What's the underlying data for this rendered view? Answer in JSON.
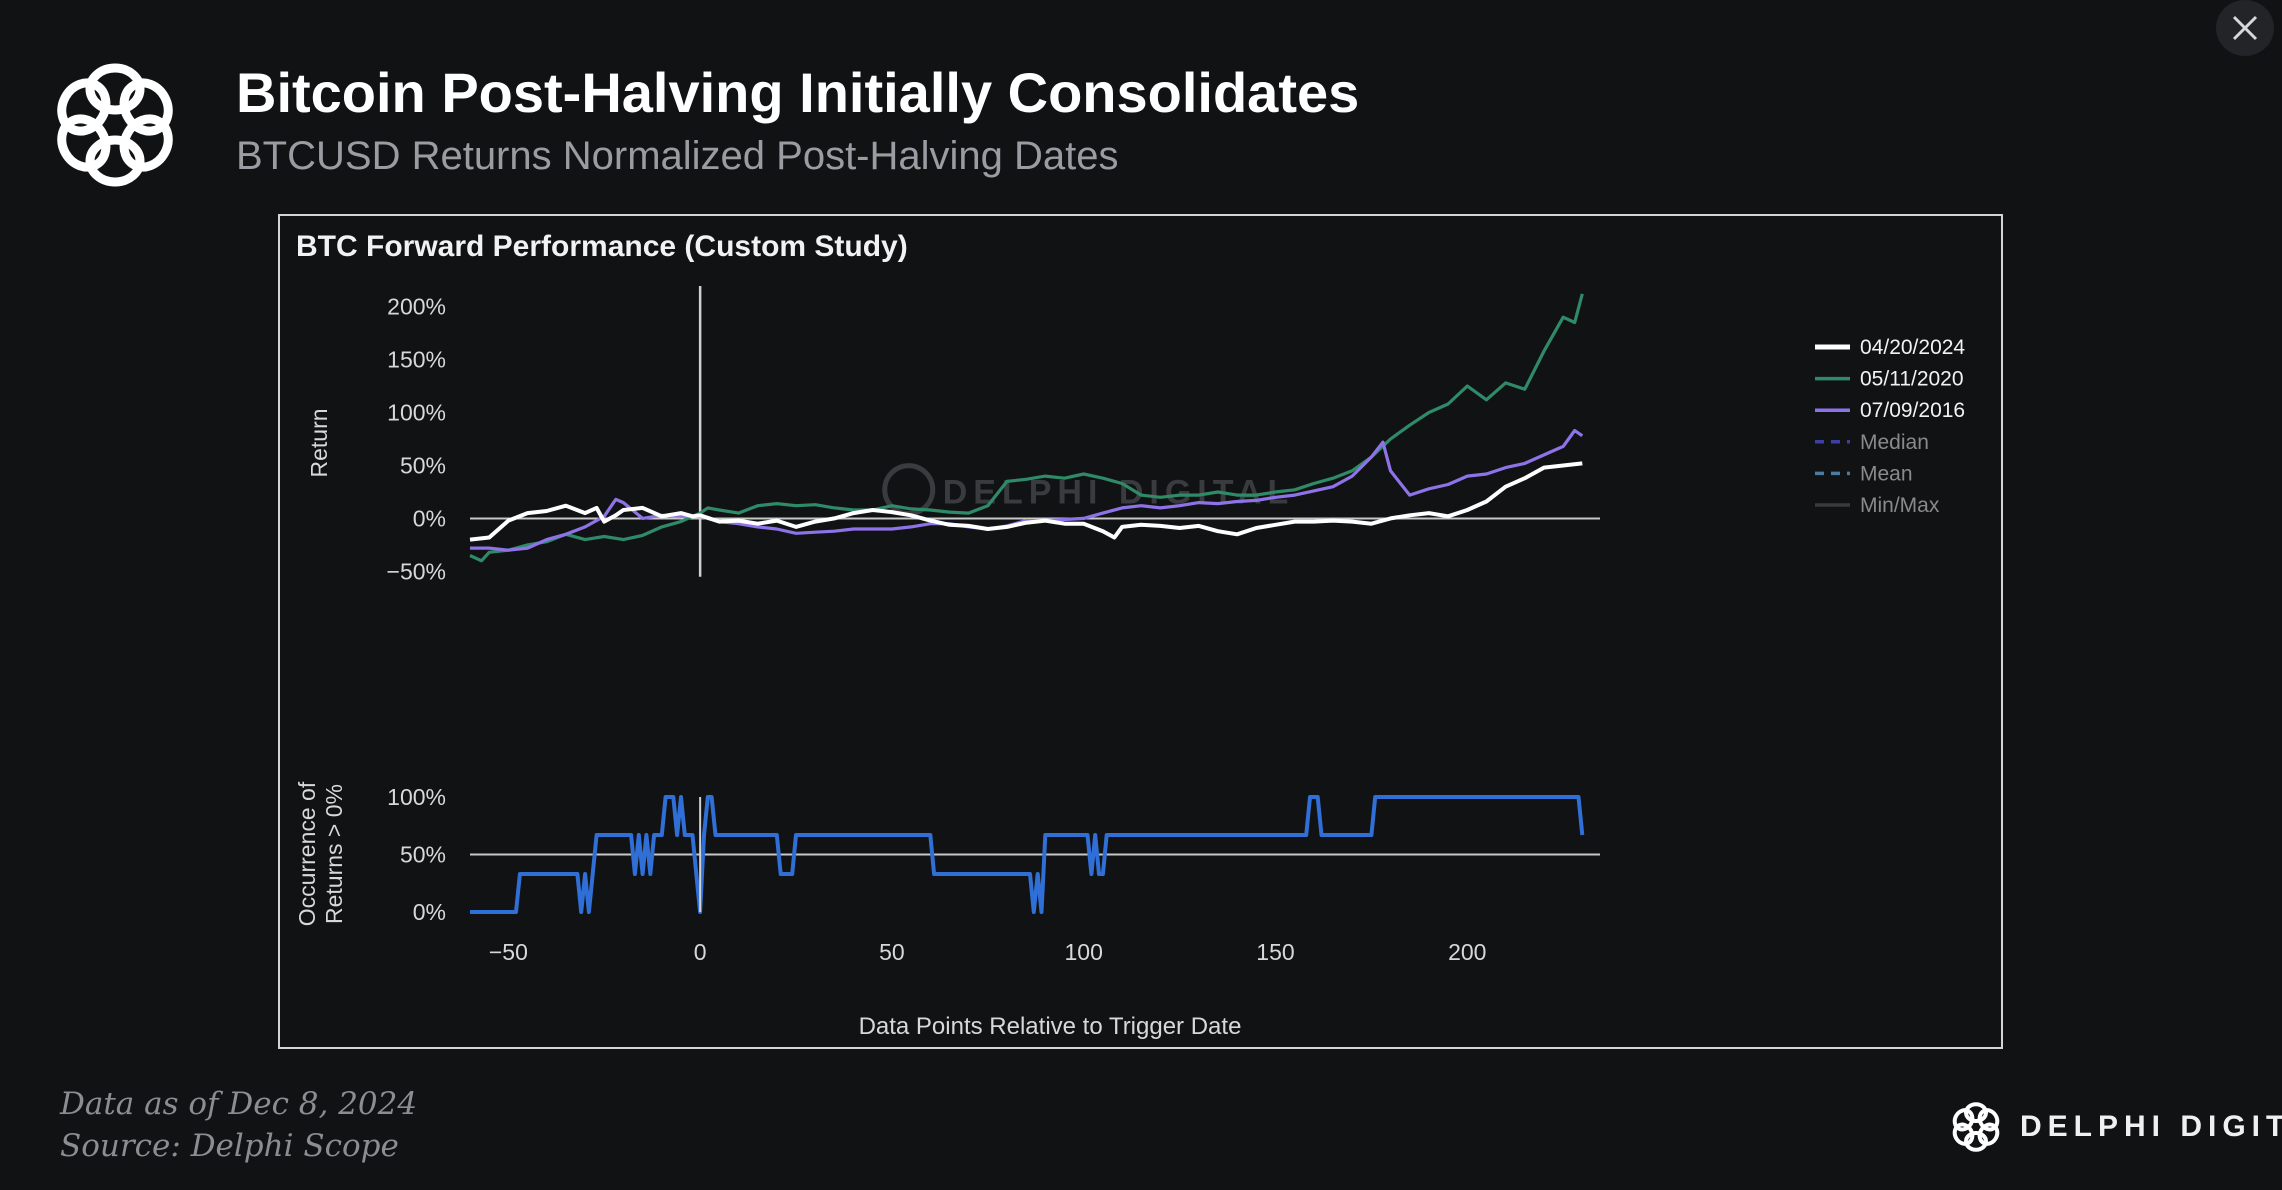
{
  "header": {
    "title": "Bitcoin Post-Halving Initially Consolidates",
    "subtitle": "BTCUSD Returns Normalized Post-Halving Dates",
    "logo_icon": "delphi-knot-logo-icon",
    "close_icon": "close-icon"
  },
  "footer": {
    "data_as_of": "Data as of Dec 8, 2024",
    "source": "Source: Delphi Scope",
    "brand_name": "DELPHI DIGITAL"
  },
  "watermark": "DELPHI DIGITAL",
  "chart_data": {
    "type": "line",
    "panel_title": "BTC Forward Performance (Custom Study)",
    "xlabel": "Data Points Relative to Trigger Date",
    "xlim": [
      -60,
      232
    ],
    "x_ticks": [
      -50,
      0,
      50,
      100,
      150,
      200
    ],
    "x_tick_labels": [
      "−50",
      "0",
      "50",
      "100",
      "150",
      "200"
    ],
    "trigger_x": 0,
    "colors": {
      "04/20/2024": "#ffffff",
      "05/11/2020": "#2f8a68",
      "07/09/2016": "#8e73e8",
      "Median": "#3d3fa6",
      "Mean": "#4b7ba1",
      "Min/Max": "#3a3a3a",
      "occurrence": "#2f6fd6",
      "zero_line": "#c8c8c8",
      "trigger_line": "#d0d0d0"
    },
    "legend": {
      "position": "right",
      "entries": [
        {
          "name": "04/20/2024",
          "style": "solid"
        },
        {
          "name": "05/11/2020",
          "style": "solid"
        },
        {
          "name": "07/09/2016",
          "style": "solid"
        },
        {
          "name": "Median",
          "style": "dashed"
        },
        {
          "name": "Mean",
          "style": "dashed"
        },
        {
          "name": "Min/Max",
          "style": "solid"
        }
      ]
    },
    "returns_panel": {
      "ylabel": "Return",
      "ylim": [
        -60,
        210
      ],
      "y_ticks": [
        -50,
        0,
        50,
        100,
        150,
        200
      ],
      "y_tick_labels": [
        "−50%",
        "0%",
        "50%",
        "100%",
        "150%",
        "200%"
      ],
      "reference_line": 0,
      "series": [
        {
          "name": "04/20/2024",
          "points": [
            [
              -60,
              -20
            ],
            [
              -55,
              -18
            ],
            [
              -50,
              -2
            ],
            [
              -45,
              5
            ],
            [
              -40,
              7
            ],
            [
              -35,
              12
            ],
            [
              -30,
              5
            ],
            [
              -27,
              10
            ],
            [
              -25,
              -3
            ],
            [
              -22,
              3
            ],
            [
              -20,
              8
            ],
            [
              -15,
              10
            ],
            [
              -10,
              2
            ],
            [
              -5,
              5
            ],
            [
              -2,
              2
            ],
            [
              0,
              3
            ],
            [
              5,
              -3
            ],
            [
              10,
              -2
            ],
            [
              15,
              -5
            ],
            [
              20,
              -2
            ],
            [
              25,
              -8
            ],
            [
              30,
              -3
            ],
            [
              35,
              0
            ],
            [
              40,
              5
            ],
            [
              45,
              8
            ],
            [
              50,
              6
            ],
            [
              55,
              3
            ],
            [
              60,
              -2
            ],
            [
              65,
              -6
            ],
            [
              70,
              -7
            ],
            [
              75,
              -10
            ],
            [
              80,
              -8
            ],
            [
              85,
              -4
            ],
            [
              90,
              -2
            ],
            [
              95,
              -5
            ],
            [
              100,
              -5
            ],
            [
              105,
              -12
            ],
            [
              108,
              -18
            ],
            [
              110,
              -8
            ],
            [
              115,
              -6
            ],
            [
              120,
              -7
            ],
            [
              125,
              -9
            ],
            [
              130,
              -7
            ],
            [
              135,
              -12
            ],
            [
              140,
              -15
            ],
            [
              145,
              -9
            ],
            [
              150,
              -6
            ],
            [
              155,
              -3
            ],
            [
              160,
              -3
            ],
            [
              165,
              -2
            ],
            [
              170,
              -3
            ],
            [
              175,
              -5
            ],
            [
              180,
              0
            ],
            [
              185,
              3
            ],
            [
              190,
              5
            ],
            [
              195,
              2
            ],
            [
              200,
              8
            ],
            [
              205,
              16
            ],
            [
              210,
              30
            ],
            [
              215,
              38
            ],
            [
              220,
              48
            ],
            [
              225,
              50
            ],
            [
              230,
              52
            ]
          ]
        },
        {
          "name": "05/11/2020",
          "points": [
            [
              -60,
              -35
            ],
            [
              -57,
              -40
            ],
            [
              -55,
              -32
            ],
            [
              -50,
              -30
            ],
            [
              -45,
              -25
            ],
            [
              -40,
              -22
            ],
            [
              -35,
              -15
            ],
            [
              -30,
              -20
            ],
            [
              -25,
              -17
            ],
            [
              -20,
              -20
            ],
            [
              -15,
              -16
            ],
            [
              -10,
              -8
            ],
            [
              -5,
              -3
            ],
            [
              -2,
              2
            ],
            [
              0,
              5
            ],
            [
              2,
              10
            ],
            [
              5,
              8
            ],
            [
              10,
              5
            ],
            [
              15,
              12
            ],
            [
              20,
              14
            ],
            [
              25,
              12
            ],
            [
              30,
              13
            ],
            [
              35,
              10
            ],
            [
              40,
              8
            ],
            [
              45,
              8
            ],
            [
              50,
              12
            ],
            [
              55,
              9
            ],
            [
              60,
              8
            ],
            [
              65,
              6
            ],
            [
              70,
              5
            ],
            [
              75,
              12
            ],
            [
              80,
              35
            ],
            [
              85,
              37
            ],
            [
              90,
              40
            ],
            [
              95,
              38
            ],
            [
              100,
              42
            ],
            [
              105,
              38
            ],
            [
              110,
              33
            ],
            [
              115,
              22
            ],
            [
              120,
              20
            ],
            [
              125,
              22
            ],
            [
              130,
              22
            ],
            [
              135,
              25
            ],
            [
              140,
              22
            ],
            [
              145,
              22
            ],
            [
              150,
              25
            ],
            [
              155,
              27
            ],
            [
              160,
              33
            ],
            [
              165,
              38
            ],
            [
              170,
              45
            ],
            [
              175,
              58
            ],
            [
              180,
              75
            ],
            [
              185,
              88
            ],
            [
              190,
              100
            ],
            [
              195,
              108
            ],
            [
              200,
              125
            ],
            [
              205,
              112
            ],
            [
              210,
              128
            ],
            [
              215,
              122
            ],
            [
              220,
              158
            ],
            [
              225,
              190
            ],
            [
              228,
              185
            ],
            [
              230,
              212
            ]
          ]
        },
        {
          "name": "07/09/2016",
          "points": [
            [
              -60,
              -28
            ],
            [
              -55,
              -28
            ],
            [
              -50,
              -30
            ],
            [
              -45,
              -28
            ],
            [
              -40,
              -20
            ],
            [
              -35,
              -15
            ],
            [
              -30,
              -8
            ],
            [
              -25,
              2
            ],
            [
              -22,
              18
            ],
            [
              -20,
              15
            ],
            [
              -15,
              0
            ],
            [
              -10,
              3
            ],
            [
              -5,
              2
            ],
            [
              0,
              2
            ],
            [
              5,
              -3
            ],
            [
              10,
              -5
            ],
            [
              15,
              -8
            ],
            [
              20,
              -10
            ],
            [
              25,
              -14
            ],
            [
              30,
              -13
            ],
            [
              35,
              -12
            ],
            [
              40,
              -10
            ],
            [
              45,
              -10
            ],
            [
              50,
              -10
            ],
            [
              55,
              -8
            ],
            [
              60,
              -5
            ],
            [
              65,
              -5
            ],
            [
              70,
              -8
            ],
            [
              75,
              -10
            ],
            [
              80,
              -7
            ],
            [
              85,
              -2
            ],
            [
              90,
              -2
            ],
            [
              95,
              -1
            ],
            [
              100,
              0
            ],
            [
              105,
              5
            ],
            [
              110,
              10
            ],
            [
              115,
              12
            ],
            [
              120,
              10
            ],
            [
              125,
              12
            ],
            [
              130,
              15
            ],
            [
              135,
              14
            ],
            [
              140,
              16
            ],
            [
              145,
              17
            ],
            [
              150,
              20
            ],
            [
              155,
              22
            ],
            [
              160,
              26
            ],
            [
              165,
              30
            ],
            [
              170,
              40
            ],
            [
              175,
              58
            ],
            [
              178,
              72
            ],
            [
              180,
              45
            ],
            [
              185,
              22
            ],
            [
              190,
              28
            ],
            [
              195,
              32
            ],
            [
              200,
              40
            ],
            [
              205,
              42
            ],
            [
              210,
              48
            ],
            [
              215,
              52
            ],
            [
              220,
              60
            ],
            [
              225,
              68
            ],
            [
              228,
              83
            ],
            [
              230,
              78
            ]
          ]
        }
      ]
    },
    "occurrence_panel": {
      "ylabel": "Occurrence of Returns > 0%",
      "ylim": [
        0,
        100
      ],
      "y_ticks": [
        0,
        50,
        100
      ],
      "y_tick_labels": [
        "0%",
        "50%",
        "100%"
      ],
      "reference_line": 50,
      "series": {
        "name": "Occurrence of Returns > 0%",
        "points": [
          [
            -60,
            0
          ],
          [
            -48,
            0
          ],
          [
            -47,
            33
          ],
          [
            -32,
            33
          ],
          [
            -31,
            0
          ],
          [
            -30,
            33
          ],
          [
            -29,
            0
          ],
          [
            -28,
            33
          ],
          [
            -27,
            67
          ],
          [
            -18,
            67
          ],
          [
            -17,
            33
          ],
          [
            -16,
            67
          ],
          [
            -15,
            33
          ],
          [
            -14,
            67
          ],
          [
            -13,
            33
          ],
          [
            -12,
            67
          ],
          [
            -10,
            67
          ],
          [
            -9,
            100
          ],
          [
            -7,
            100
          ],
          [
            -6,
            67
          ],
          [
            -5,
            100
          ],
          [
            -4,
            67
          ],
          [
            -3,
            67
          ],
          [
            -2,
            67
          ],
          [
            -1,
            33
          ],
          [
            0,
            0
          ],
          [
            1,
            67
          ],
          [
            2,
            100
          ],
          [
            3,
            100
          ],
          [
            4,
            67
          ],
          [
            20,
            67
          ],
          [
            21,
            33
          ],
          [
            24,
            33
          ],
          [
            25,
            67
          ],
          [
            60,
            67
          ],
          [
            61,
            33
          ],
          [
            86,
            33
          ],
          [
            87,
            0
          ],
          [
            88,
            33
          ],
          [
            89,
            0
          ],
          [
            90,
            67
          ],
          [
            101,
            67
          ],
          [
            102,
            33
          ],
          [
            103,
            67
          ],
          [
            104,
            33
          ],
          [
            105,
            33
          ],
          [
            106,
            67
          ],
          [
            158,
            67
          ],
          [
            159,
            100
          ],
          [
            161,
            100
          ],
          [
            162,
            67
          ],
          [
            175,
            67
          ],
          [
            176,
            100
          ],
          [
            229,
            100
          ],
          [
            230,
            67
          ]
        ]
      }
    }
  }
}
